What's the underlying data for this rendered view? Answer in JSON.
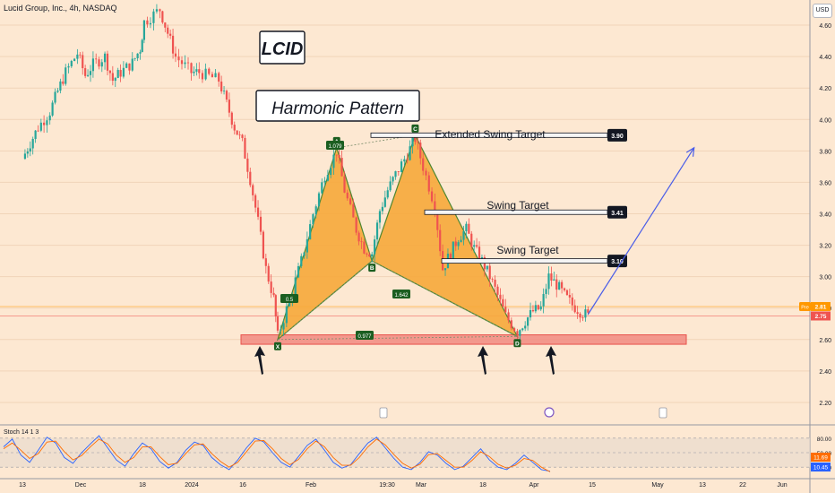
{
  "header": {
    "symbol": "Lucid Group, Inc., 4h, NASDAQ",
    "currency": "USD"
  },
  "annotations": {
    "ticker": "LCID",
    "pattern": "Harmonic Pattern",
    "extended_target": "Extended Swing Target",
    "swing_target_1": "Swing Target",
    "swing_target_2": "Swing Target",
    "points": [
      "X",
      "A",
      "B",
      "C",
      "D"
    ],
    "ratios": {
      "xb": "0.5",
      "xd": "0.977",
      "ac": "1.079",
      "bd": "1.642"
    }
  },
  "colors": {
    "up": "#26a69a",
    "down": "#ef5350",
    "pattern": "#f7a93b",
    "pattern_stroke": "#3b7d1f",
    "stoch_k": "#2962ff",
    "stoch_d": "#ff6d00",
    "projection": "#4a5de8"
  },
  "chart_data": [
    {
      "type": "candlestick",
      "title": "Lucid Group, Inc., 4h, NASDAQ",
      "y_axis": {
        "ticks": [
          "4.60",
          "4.40",
          "4.20",
          "4.00",
          "3.80",
          "3.60",
          "3.40",
          "3.20",
          "3.00",
          "2.80",
          "2.60",
          "2.40",
          "2.20"
        ],
        "range": [
          2.08,
          4.76
        ]
      },
      "x_axis": {
        "ticks": [
          "13",
          "Dec",
          "18",
          "2024",
          "16",
          "Feb",
          "19:30",
          "Mar",
          "18",
          "Apr",
          "15",
          "May",
          "13",
          "22",
          "Jun"
        ]
      },
      "price_labels": [
        {
          "text": "Pre",
          "value": "2.81",
          "color": "#ff9800"
        },
        {
          "text": "",
          "value": "2.75",
          "color": "#ef5350"
        }
      ],
      "targets": [
        {
          "label": "Extended Swing Target",
          "value": 3.9,
          "tag": "3.90"
        },
        {
          "label": "Swing Target",
          "value": 3.41,
          "tag": "3.41"
        },
        {
          "label": "Swing Target",
          "value": 3.1,
          "tag": "3.10"
        }
      ],
      "support_zone": [
        2.57,
        2.63
      ],
      "harmonic_points": [
        {
          "label": "X",
          "date": "2024-01-17",
          "price": 2.6
        },
        {
          "label": "A",
          "date": "2024-02-01",
          "price": 3.82
        },
        {
          "label": "B",
          "date": "2024-02-10",
          "price": 3.1
        },
        {
          "label": "C",
          "date": "2024-02-21",
          "price": 3.9
        },
        {
          "label": "D",
          "date": "2024-03-18",
          "price": 2.62
        }
      ],
      "close_points": [
        [
          "2023-11-13",
          3.75
        ],
        [
          "2023-11-15",
          3.85
        ],
        [
          "2023-11-17",
          3.95
        ],
        [
          "2023-11-20",
          4.05
        ],
        [
          "2023-11-22",
          4.18
        ],
        [
          "2023-11-24",
          4.3
        ],
        [
          "2023-11-27",
          4.42
        ],
        [
          "2023-11-29",
          4.28
        ],
        [
          "2023-12-01",
          4.35
        ],
        [
          "2023-12-04",
          4.4
        ],
        [
          "2023-12-06",
          4.25
        ],
        [
          "2023-12-08",
          4.3
        ],
        [
          "2023-12-11",
          4.36
        ],
        [
          "2023-12-13",
          4.45
        ],
        [
          "2023-12-14",
          4.62
        ],
        [
          "2023-12-18",
          4.7
        ],
        [
          "2023-12-20",
          4.55
        ],
        [
          "2023-12-22",
          4.4
        ],
        [
          "2023-12-26",
          4.3
        ],
        [
          "2023-12-28",
          4.3
        ],
        [
          "2024-01-02",
          4.25
        ],
        [
          "2024-01-04",
          4.1
        ],
        [
          "2024-01-06",
          3.95
        ],
        [
          "2024-01-08",
          3.85
        ],
        [
          "2024-01-10",
          3.62
        ],
        [
          "2024-01-12",
          3.35
        ],
        [
          "2024-01-14",
          3.05
        ],
        [
          "2024-01-16",
          2.86
        ],
        [
          "2024-01-17",
          2.62
        ],
        [
          "2024-01-20",
          2.85
        ],
        [
          "2024-01-23",
          3.1
        ],
        [
          "2024-01-26",
          3.4
        ],
        [
          "2024-01-29",
          3.65
        ],
        [
          "2024-02-01",
          3.8
        ],
        [
          "2024-02-03",
          3.55
        ],
        [
          "2024-02-06",
          3.3
        ],
        [
          "2024-02-08",
          3.18
        ],
        [
          "2024-02-10",
          3.15
        ],
        [
          "2024-02-12",
          3.42
        ],
        [
          "2024-02-14",
          3.55
        ],
        [
          "2024-02-16",
          3.65
        ],
        [
          "2024-02-19",
          3.78
        ],
        [
          "2024-02-21",
          3.88
        ],
        [
          "2024-02-23",
          3.7
        ],
        [
          "2024-02-26",
          3.45
        ],
        [
          "2024-02-28",
          3.05
        ],
        [
          "2024-03-01",
          3.15
        ],
        [
          "2024-03-03",
          3.25
        ],
        [
          "2024-03-05",
          3.3
        ],
        [
          "2024-03-07",
          3.18
        ],
        [
          "2024-03-09",
          3.1
        ],
        [
          "2024-03-11",
          3.0
        ],
        [
          "2024-03-13",
          2.88
        ],
        [
          "2024-03-15",
          2.75
        ],
        [
          "2024-03-18",
          2.65
        ],
        [
          "2024-03-20",
          2.72
        ],
        [
          "2024-03-22",
          2.78
        ],
        [
          "2024-03-24",
          2.8
        ],
        [
          "2024-03-26",
          3.0
        ],
        [
          "2024-03-28",
          2.95
        ],
        [
          "2024-03-30",
          2.88
        ],
        [
          "2024-04-01",
          2.82
        ],
        [
          "2024-04-03",
          2.78
        ],
        [
          "2024-04-05",
          2.75
        ]
      ],
      "projection": {
        "from": [
          "2024-04-05",
          2.76
        ],
        "to": [
          "2024-05-02",
          3.82
        ]
      }
    },
    {
      "type": "line",
      "title": "Stoch 14 1 3",
      "y_axis": {
        "ticks": [
          "80.00",
          "50.00",
          "20.00"
        ],
        "range": [
          0,
          100
        ]
      },
      "value_labels": [
        "11.69",
        "10.45"
      ],
      "series": [
        {
          "name": "%K",
          "values": [
            62,
            78,
            45,
            30,
            55,
            82,
            70,
            40,
            28,
            50,
            68,
            85,
            60,
            35,
            22,
            48,
            70,
            58,
            32,
            18,
            30,
            55,
            72,
            65,
            40,
            25,
            15,
            35,
            60,
            80,
            72,
            50,
            30,
            20,
            42,
            65,
            78,
            55,
            30,
            18,
            25,
            48,
            70,
            82,
            60,
            38,
            20,
            15,
            30,
            52,
            45,
            28,
            15,
            22,
            40,
            58,
            35,
            20,
            15,
            28,
            45,
            30,
            15,
            11.69
          ]
        },
        {
          "name": "%D",
          "values": [
            58,
            70,
            55,
            38,
            48,
            72,
            74,
            52,
            35,
            44,
            62,
            78,
            68,
            45,
            30,
            40,
            62,
            62,
            42,
            25,
            28,
            48,
            66,
            68,
            48,
            32,
            20,
            30,
            52,
            74,
            75,
            58,
            38,
            25,
            36,
            58,
            74,
            62,
            40,
            24,
            24,
            40,
            62,
            78,
            66,
            46,
            28,
            18,
            26,
            46,
            48,
            34,
            20,
            20,
            34,
            52,
            42,
            26,
            18,
            24,
            38,
            34,
            20,
            10.45
          ]
        }
      ]
    }
  ]
}
